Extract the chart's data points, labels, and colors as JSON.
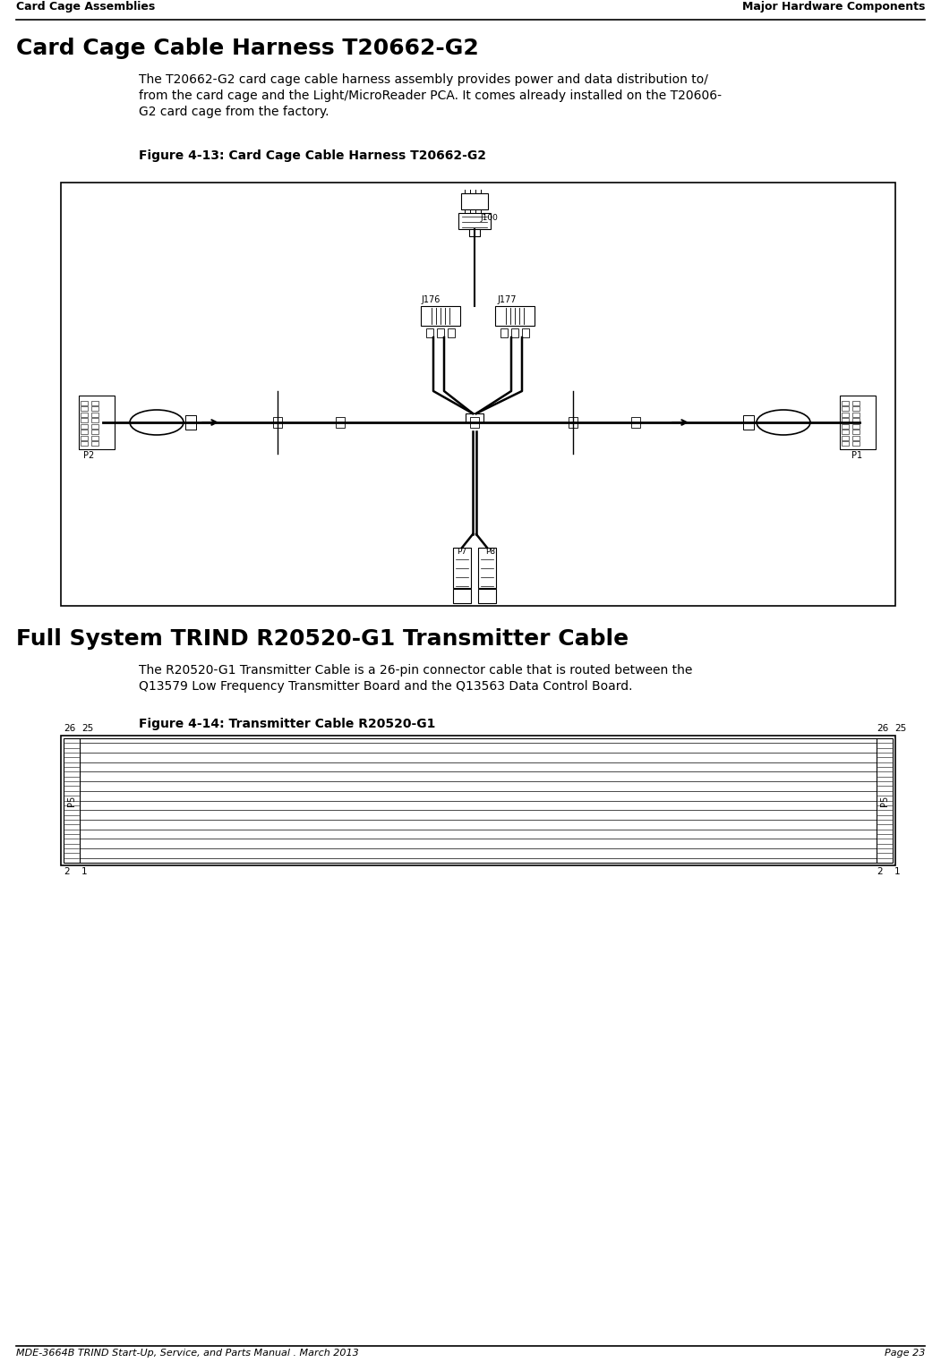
{
  "page_title_left": "Card Cage Assemblies",
  "page_title_right": "Major Hardware Components",
  "section1_title": "Card Cage Cable Harness T20662-G2",
  "section1_body1": "The T20662-G2 card cage cable harness assembly provides power and data distribution to/",
  "section1_body2": "from the card cage and the Light/MicroReader PCA. It comes already installed on the T20606-",
  "section1_body3": "G2 card cage from the factory.",
  "figure1_caption": "Figure 4-13: Card Cage Cable Harness T20662-G2",
  "section2_title": "Full System TRIND R20520-G1 Transmitter Cable",
  "section2_body1": "The R20520-G1 Transmitter Cable is a 26-pin connector cable that is routed between the",
  "section2_body2": "Q13579 Low Frequency Transmitter Board and the Q13563 Data Control Board.",
  "figure2_caption": "Figure 4-14: Transmitter Cable R20520-G1",
  "footer_left": "MDE-3664B TRIND Start-Up, Service, and Parts Manual . March 2013",
  "footer_right": "Page 23",
  "bg_color": "#ffffff",
  "text_color": "#000000"
}
